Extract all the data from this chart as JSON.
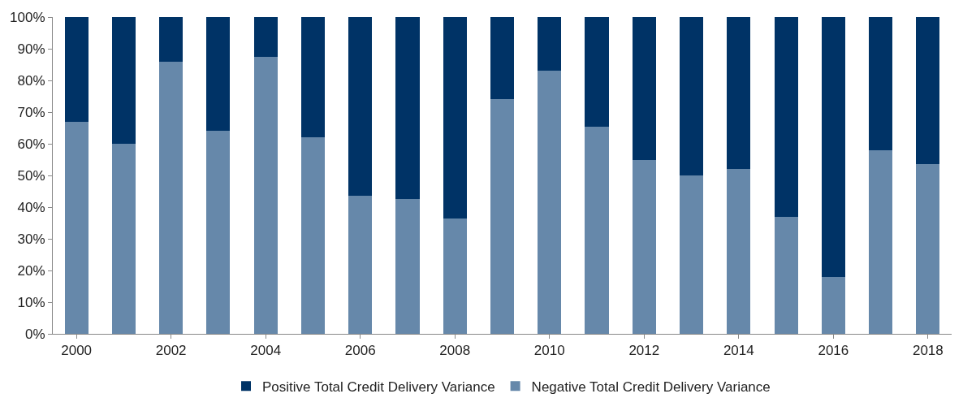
{
  "chart_data": {
    "type": "bar",
    "stacked": true,
    "categories": [
      "2000",
      null,
      "2002",
      null,
      "2004",
      null,
      "2006",
      null,
      "2008",
      null,
      "2010",
      null,
      "2012",
      null,
      "2014",
      null,
      "2016",
      null,
      "2018"
    ],
    "series": [
      {
        "name": "Negative Total Credit Delivery Variance",
        "color": "#6688aa",
        "values": [
          67,
          60,
          86,
          64,
          87.5,
          62,
          43.5,
          42.5,
          36.5,
          74,
          83,
          65.5,
          55,
          50,
          52,
          37,
          18,
          58,
          53.5
        ]
      },
      {
        "name": "Positive Total Credit Delivery Variance",
        "color": "#003366",
        "values": [
          33,
          40,
          14,
          36,
          12.5,
          38,
          56.5,
          57.5,
          63.5,
          26,
          17,
          34.5,
          45,
          50,
          48,
          63,
          82,
          42,
          46.5
        ]
      }
    ],
    "ylim": [
      0,
      100
    ],
    "yticks": [
      {
        "value": 0,
        "label": "0%"
      },
      {
        "value": 10,
        "label": "10%"
      },
      {
        "value": 20,
        "label": "20%"
      },
      {
        "value": 30,
        "label": "30%"
      },
      {
        "value": 40,
        "label": "40%"
      },
      {
        "value": 50,
        "label": "50%"
      },
      {
        "value": 60,
        "label": "60%"
      },
      {
        "value": 70,
        "label": "70%"
      },
      {
        "value": 80,
        "label": "80%"
      },
      {
        "value": 90,
        "label": "90%"
      },
      {
        "value": 100,
        "label": "100%"
      }
    ],
    "legend": "bottom"
  }
}
